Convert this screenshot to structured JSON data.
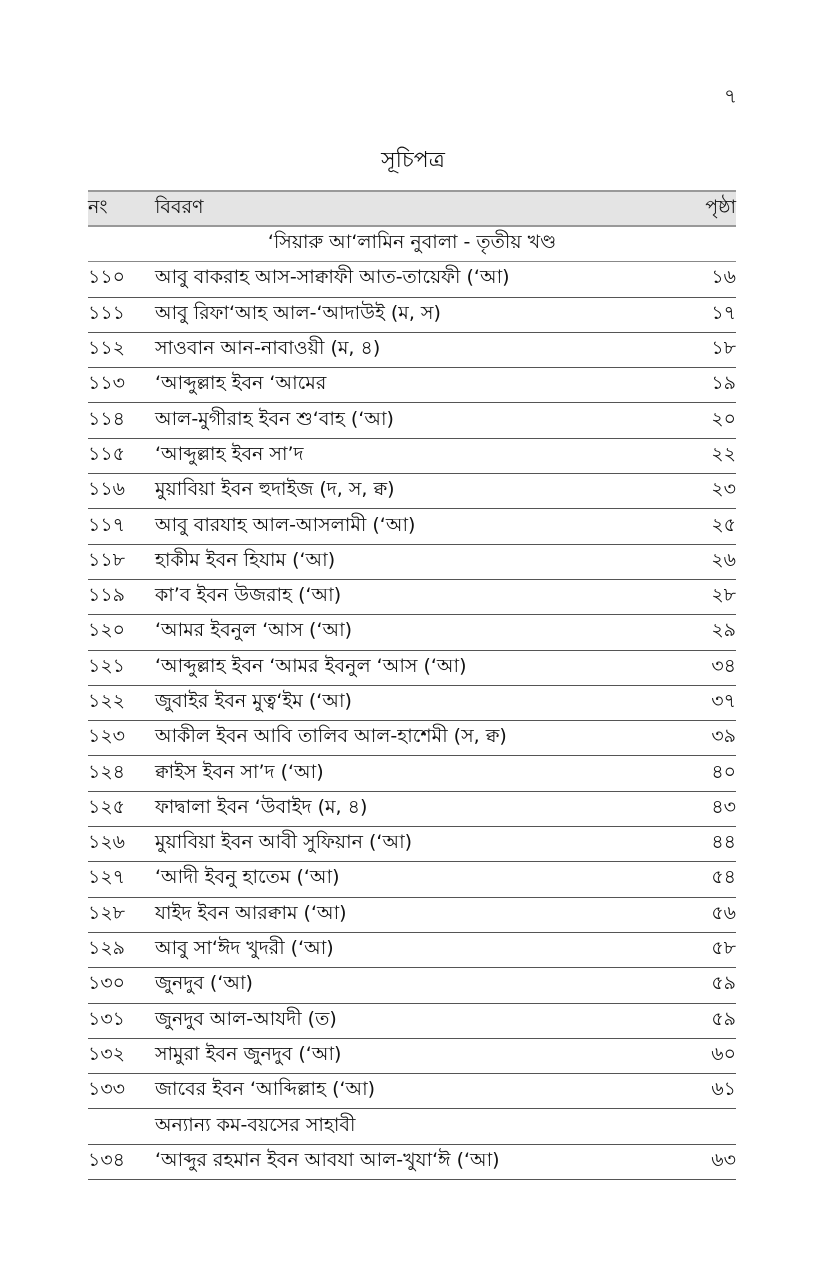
{
  "page_number": "৭",
  "title": "সূচিপত্র",
  "table": {
    "headers": {
      "no": "নং",
      "desc": "বিবরণ",
      "page": "পৃষ্ঠা"
    },
    "section1": "‘সিয়ারু আ‘লামিন নুবালা - তৃতীয় খণ্ড",
    "rows": [
      {
        "no": "১১০",
        "desc": "আবু বাকরাহ আস-সাক্বাফী আত-তায়েফী (‘আ)",
        "page": "১৬"
      },
      {
        "no": "১১১",
        "desc": "আবু রিফা‘আহ আল-‘আদাউই (ম, স)",
        "page": "১৭"
      },
      {
        "no": "১১২",
        "desc": "সাওবান আন-নাবাওয়ী (ম, ৪)",
        "page": "১৮"
      },
      {
        "no": "১১৩",
        "desc": "‘আব্দুল্লাহ ইবন ‘আমের",
        "page": "১৯"
      },
      {
        "no": "১১৪",
        "desc": "আল-মুগীরাহ ইবন শু‘বাহ (‘আ)",
        "page": "২০"
      },
      {
        "no": "১১৫",
        "desc": "‘আব্দুল্লাহ ইবন সা’দ",
        "page": "২২"
      },
      {
        "no": "১১৬",
        "desc": "মুয়াবিয়া ইবন হুদাইজ (দ, স, ক্ব)",
        "page": "২৩"
      },
      {
        "no": "১১৭",
        "desc": "আবু বারযাহ আল-আসলামী (‘আ)",
        "page": "২৫"
      },
      {
        "no": "১১৮",
        "desc": "হাকীম ইবন হিযাম (‘আ)",
        "page": "২৬"
      },
      {
        "no": "১১৯",
        "desc": "কা’ব ইবন উজরাহ (‘আ)",
        "page": "২৮"
      },
      {
        "no": "১২০",
        "desc": "‘আমর ইবনুল ‘আস (‘আ)",
        "page": "২৯"
      },
      {
        "no": "১২১",
        "desc": "‘আব্দুল্লাহ ইবন ‘আমর ইবনুল ‘আস (‘আ)",
        "page": "৩৪"
      },
      {
        "no": "১২২",
        "desc": "জুবাইর ইবন মুত্ব‘ইম (‘আ)",
        "page": "৩৭"
      },
      {
        "no": "১২৩",
        "desc": "আকীল ইবন আবি তালিব আল-হাশেমী (স, ক্ব)",
        "page": "৩৯"
      },
      {
        "no": "১২৪",
        "desc": "ক্বাইস ইবন সা’দ (‘আ)",
        "page": "৪০"
      },
      {
        "no": "১২৫",
        "desc": "ফাদ্বালা ইবন ‘উবাইদ (ম, ৪)",
        "page": "৪৩"
      },
      {
        "no": "১২৬",
        "desc": "মুয়াবিয়া ইবন আবী সুফিয়ান (‘আ)",
        "page": "৪৪"
      },
      {
        "no": "১২৭",
        "desc": "‘আদী ইবনু হাতেম (‘আ)",
        "page": "৫৪"
      },
      {
        "no": "১২৮",
        "desc": "যাইদ ইবন আরক্বাম (‘আ)",
        "page": "৫৬"
      },
      {
        "no": "১২৯",
        "desc": "আবু সা‘ঈদ খুদরী (‘আ)",
        "page": "৫৮"
      },
      {
        "no": "১৩০",
        "desc": "জুনদুব (‘আ)",
        "page": "৫৯"
      },
      {
        "no": "১৩১",
        "desc": "জুনদুব আল-আযদী (ত)",
        "page": "৫৯"
      },
      {
        "no": "১৩২",
        "desc": "সামুরা ইবন জুনদুব (‘আ)",
        "page": "৬০"
      },
      {
        "no": "১৩৩",
        "desc": "জাবের ইবন ‘আব্দিল্লাহ (‘আ)",
        "page": "৬১"
      }
    ],
    "section2": "অন্যান্য কম-বয়সের সাহাবী",
    "rows2": [
      {
        "no": "১৩৪",
        "desc": "‘আব্দুর রহমান ইবন আবযা আল-খুযা‘ঈ (‘আ)",
        "page": "৬৩"
      }
    ]
  }
}
